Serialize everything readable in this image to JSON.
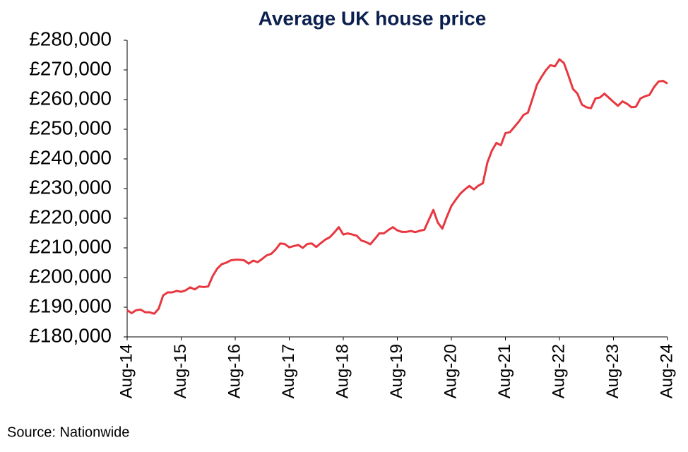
{
  "chart_data": {
    "type": "line",
    "title": "Average UK house price",
    "source": "Source: Nationwide",
    "color": "#e8373f",
    "categories": [
      "Aug-14",
      null,
      null,
      null,
      null,
      null,
      null,
      null,
      null,
      null,
      null,
      null,
      "Aug-15",
      null,
      null,
      null,
      null,
      null,
      null,
      null,
      null,
      null,
      null,
      null,
      "Aug-16",
      null,
      null,
      null,
      null,
      null,
      null,
      null,
      null,
      null,
      null,
      null,
      "Aug-17",
      null,
      null,
      null,
      null,
      null,
      null,
      null,
      null,
      null,
      null,
      null,
      "Aug-18",
      null,
      null,
      null,
      null,
      null,
      null,
      null,
      null,
      null,
      null,
      null,
      "Aug-19",
      null,
      null,
      null,
      null,
      null,
      null,
      null,
      null,
      null,
      null,
      null,
      "Aug-20",
      null,
      null,
      null,
      null,
      null,
      null,
      null,
      null,
      null,
      null,
      null,
      "Aug-21",
      null,
      null,
      null,
      null,
      null,
      null,
      null,
      null,
      null,
      null,
      null,
      "Aug-22",
      null,
      null,
      null,
      null,
      null,
      null,
      null,
      null,
      null,
      null,
      null,
      "Aug-23",
      null,
      null,
      null,
      null,
      null,
      null,
      null,
      null,
      null,
      null,
      null,
      "Aug-24"
    ],
    "values": [
      189000,
      188000,
      189000,
      189200,
      188300,
      188300,
      187800,
      189500,
      194000,
      195000,
      195000,
      195500,
      195200,
      195700,
      196700,
      196000,
      197000,
      196800,
      197000,
      200500,
      203000,
      204500,
      205000,
      205800,
      206000,
      206000,
      205800,
      204700,
      205700,
      205200,
      206300,
      207500,
      208000,
      209500,
      211500,
      211300,
      210200,
      210600,
      211000,
      210000,
      211300,
      211500,
      210300,
      211600,
      212800,
      213600,
      215200,
      217000,
      214500,
      214900,
      214500,
      214100,
      212500,
      212000,
      211200,
      213000,
      214900,
      214900,
      216000,
      217000,
      215900,
      215400,
      215400,
      215700,
      215300,
      215800,
      216100,
      219500,
      222800,
      218500,
      216500,
      220500,
      224100,
      226300,
      228300,
      229700,
      230900,
      229700,
      231000,
      231800,
      238800,
      242800,
      245400,
      244600,
      248700,
      249000,
      250800,
      252600,
      254800,
      255600,
      260200,
      265000,
      267600,
      269900,
      271600,
      271200,
      273600,
      272300,
      268100,
      263600,
      262000,
      258300,
      257400,
      257100,
      260400,
      260700,
      262000,
      260600,
      259200,
      257900,
      259400,
      258600,
      257400,
      257600,
      260400,
      261100,
      261600,
      264200,
      266100,
      266300,
      265400
    ],
    "ylim": [
      180000,
      280000
    ],
    "yticks": [
      {
        "value": 180000,
        "label": "£180,000"
      },
      {
        "value": 190000,
        "label": "£190,000"
      },
      {
        "value": 200000,
        "label": "£200,000"
      },
      {
        "value": 210000,
        "label": "£210,000"
      },
      {
        "value": 220000,
        "label": "£220,000"
      },
      {
        "value": 230000,
        "label": "£230,000"
      },
      {
        "value": 240000,
        "label": "£240,000"
      },
      {
        "value": 250000,
        "label": "£250,000"
      },
      {
        "value": 260000,
        "label": "£260,000"
      },
      {
        "value": 270000,
        "label": "£270,000"
      },
      {
        "value": 280000,
        "label": "£280,000"
      }
    ]
  }
}
